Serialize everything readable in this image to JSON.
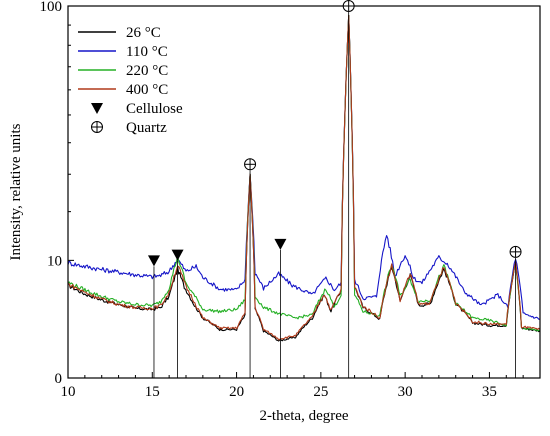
{
  "chart_data": {
    "type": "line",
    "xlabel": "2-theta, degree",
    "ylabel": "Intensity, relative units",
    "xlim": [
      10,
      38
    ],
    "ylim": [
      0,
      100
    ],
    "y_scale": "power (tick 0, 10, 100)",
    "x_ticks": [
      10,
      15,
      20,
      25,
      30,
      35
    ],
    "x_tick_labels": [
      "10",
      "15",
      "20",
      "25",
      "30",
      "35"
    ],
    "y_ticks": [
      0,
      10,
      100
    ],
    "y_tick_labels": [
      "0",
      "10",
      "100"
    ],
    "grid": false,
    "legend_position": "top-left",
    "series": [
      {
        "name": "26 °C",
        "color": "#000000",
        "points": [
          [
            10,
            6.2
          ],
          [
            11,
            5.1
          ],
          [
            12,
            4.4
          ],
          [
            13,
            3.9
          ],
          [
            14,
            3.5
          ],
          [
            15,
            3.4
          ],
          [
            15.5,
            3.6
          ],
          [
            16,
            4.8
          ],
          [
            16.5,
            8.6
          ],
          [
            16.9,
            6.0
          ],
          [
            17.5,
            3.8
          ],
          [
            18,
            2.6
          ],
          [
            19,
            1.7
          ],
          [
            20,
            1.7
          ],
          [
            20.5,
            2.8
          ],
          [
            20.8,
            30
          ],
          [
            21.1,
            3.4
          ],
          [
            21.6,
            1.6
          ],
          [
            22.5,
            1.0
          ],
          [
            23.5,
            1.2
          ],
          [
            24.5,
            2.6
          ],
          [
            25.2,
            5.0
          ],
          [
            25.6,
            3.2
          ],
          [
            26.2,
            5.5
          ],
          [
            26.65,
            95
          ],
          [
            27.0,
            6.0
          ],
          [
            27.5,
            3.6
          ],
          [
            28.5,
            2.5
          ],
          [
            29.2,
            9.0
          ],
          [
            29.7,
            4.2
          ],
          [
            30.3,
            7.6
          ],
          [
            30.8,
            3.8
          ],
          [
            31.5,
            4.0
          ],
          [
            32.3,
            8.6
          ],
          [
            33,
            4.0
          ],
          [
            34,
            2.2
          ],
          [
            35,
            2.0
          ],
          [
            36,
            2.0
          ],
          [
            36.55,
            9.5
          ],
          [
            36.9,
            1.8
          ],
          [
            38,
            1.6
          ]
        ]
      },
      {
        "name": "110 °C",
        "color": "#1515c8",
        "points": [
          [
            10,
            9.6
          ],
          [
            11,
            9.0
          ],
          [
            12,
            8.5
          ],
          [
            13,
            8.1
          ],
          [
            14,
            7.7
          ],
          [
            15,
            7.4
          ],
          [
            15.5,
            7.6
          ],
          [
            16,
            8.2
          ],
          [
            16.5,
            10.2
          ],
          [
            17,
            8.2
          ],
          [
            17.6,
            9.0
          ],
          [
            18,
            7.3
          ],
          [
            19,
            5.7
          ],
          [
            20,
            5.6
          ],
          [
            20.5,
            7.0
          ],
          [
            20.8,
            30
          ],
          [
            21.1,
            8.0
          ],
          [
            21.6,
            5.8
          ],
          [
            22.5,
            7.8
          ],
          [
            23.3,
            6.2
          ],
          [
            24.5,
            5.0
          ],
          [
            25.3,
            7.2
          ],
          [
            25.8,
            5.6
          ],
          [
            26.2,
            6.5
          ],
          [
            26.65,
            95
          ],
          [
            27.0,
            7.0
          ],
          [
            27.5,
            4.6
          ],
          [
            28.3,
            4.8
          ],
          [
            28.9,
            15
          ],
          [
            29.4,
            7.5
          ],
          [
            30,
            11
          ],
          [
            30.5,
            7.2
          ],
          [
            31,
            6.5
          ],
          [
            32,
            10.5
          ],
          [
            32.5,
            9.5
          ],
          [
            33.5,
            5.4
          ],
          [
            34.5,
            3.8
          ],
          [
            35.5,
            5.0
          ],
          [
            36.1,
            3.6
          ],
          [
            36.55,
            10.5
          ],
          [
            37,
            3.0
          ],
          [
            38,
            2.5
          ]
        ]
      },
      {
        "name": "220 °C",
        "color": "#25b025",
        "points": [
          [
            10,
            6.6
          ],
          [
            11,
            5.6
          ],
          [
            12,
            4.8
          ],
          [
            13,
            4.2
          ],
          [
            14,
            3.9
          ],
          [
            15,
            3.8
          ],
          [
            15.5,
            4.2
          ],
          [
            16,
            5.8
          ],
          [
            16.5,
            10.6
          ],
          [
            17,
            6.4
          ],
          [
            17.6,
            4.6
          ],
          [
            18,
            3.4
          ],
          [
            19,
            3.2
          ],
          [
            20,
            3.4
          ],
          [
            20.5,
            4.4
          ],
          [
            20.8,
            30
          ],
          [
            21.1,
            4.8
          ],
          [
            21.6,
            3.6
          ],
          [
            22.5,
            3.0
          ],
          [
            23.5,
            2.6
          ],
          [
            24.5,
            2.9
          ],
          [
            25.3,
            5.8
          ],
          [
            25.8,
            3.6
          ],
          [
            26.2,
            5.0
          ],
          [
            26.65,
            95
          ],
          [
            27.0,
            5.0
          ],
          [
            27.5,
            3.2
          ],
          [
            28.5,
            2.8
          ],
          [
            29.2,
            9.4
          ],
          [
            29.7,
            4.8
          ],
          [
            30.3,
            7.0
          ],
          [
            30.8,
            4.2
          ],
          [
            31.5,
            4.4
          ],
          [
            32.3,
            9.0
          ],
          [
            33,
            4.0
          ],
          [
            34,
            2.6
          ],
          [
            35,
            2.4
          ],
          [
            36,
            2.0
          ],
          [
            36.55,
            9.5
          ],
          [
            36.9,
            1.8
          ],
          [
            38,
            1.6
          ]
        ]
      },
      {
        "name": "400 °C",
        "color": "#b03a1a",
        "points": [
          [
            10,
            6.4
          ],
          [
            11,
            5.3
          ],
          [
            12,
            4.5
          ],
          [
            13,
            3.9
          ],
          [
            14,
            3.6
          ],
          [
            15,
            3.5
          ],
          [
            15.5,
            3.8
          ],
          [
            16,
            5.2
          ],
          [
            16.5,
            9.2
          ],
          [
            17,
            6.0
          ],
          [
            17.6,
            3.8
          ],
          [
            18,
            2.6
          ],
          [
            19,
            1.8
          ],
          [
            20,
            1.8
          ],
          [
            20.5,
            3.0
          ],
          [
            20.8,
            30
          ],
          [
            21.1,
            3.6
          ],
          [
            21.6,
            1.7
          ],
          [
            22.5,
            1.1
          ],
          [
            23.5,
            1.3
          ],
          [
            24.5,
            2.7
          ],
          [
            25.2,
            5.1
          ],
          [
            25.6,
            3.3
          ],
          [
            26.2,
            5.6
          ],
          [
            26.65,
            95
          ],
          [
            27.0,
            6.0
          ],
          [
            27.5,
            3.7
          ],
          [
            28.5,
            2.6
          ],
          [
            29.2,
            9.2
          ],
          [
            29.7,
            4.3
          ],
          [
            30.3,
            7.8
          ],
          [
            30.8,
            3.9
          ],
          [
            31.5,
            4.1
          ],
          [
            32.3,
            8.8
          ],
          [
            33,
            4.1
          ],
          [
            34,
            2.3
          ],
          [
            35,
            2.1
          ],
          [
            36,
            2.1
          ],
          [
            36.55,
            9.6
          ],
          [
            36.9,
            1.9
          ],
          [
            38,
            1.7
          ]
        ]
      }
    ],
    "markers": {
      "cellulose": {
        "label": "Cellulose",
        "symbol": "filled-down-triangle",
        "positions": [
          [
            15.1,
            10
          ],
          [
            16.5,
            11
          ],
          [
            22.6,
            13
          ]
        ]
      },
      "quartz": {
        "label": "Quartz",
        "symbol": "crossed-circle",
        "positions": [
          [
            20.8,
            33
          ],
          [
            26.65,
            100
          ],
          [
            36.55,
            11.5
          ]
        ]
      }
    }
  }
}
